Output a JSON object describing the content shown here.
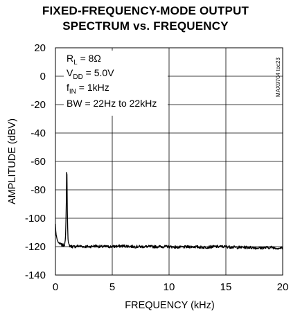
{
  "chart_data": {
    "type": "line",
    "title_line1": "FIXED-FREQUENCY-MODE OUTPUT",
    "title_line2": "SPECTRUM vs. FREQUENCY",
    "xlabel": "FREQUENCY (kHz)",
    "ylabel": "AMPLITUDE (dBV)",
    "xlim": [
      0,
      20
    ],
    "ylim": [
      -140,
      20
    ],
    "xticks": [
      0,
      5,
      10,
      15,
      20
    ],
    "yticks": [
      20,
      0,
      -20,
      -40,
      -60,
      -80,
      -100,
      -120,
      -140
    ],
    "grid": true,
    "annotations": {
      "rl": {
        "main": "R",
        "sub": "L",
        "rest": " = 8Ω"
      },
      "vdd": {
        "main": "V",
        "sub": "DD",
        "rest": " = 5.0V"
      },
      "fin": {
        "main": "f",
        "sub": "IN",
        "rest": " = 1kHz"
      },
      "bw": "BW = 22Hz to 22kHz"
    },
    "figure_id": "MAX9704 toc23",
    "series": [
      {
        "noise_floor": -120,
        "x": [
          0.0,
          0.02,
          0.05,
          0.1,
          0.15,
          0.2,
          0.25,
          0.3,
          0.4,
          0.5,
          0.6,
          0.7,
          0.8,
          0.85,
          0.9,
          0.95,
          0.98,
          1.0,
          1.02,
          1.05,
          1.1,
          1.15,
          1.2,
          1.3,
          1.5,
          1.75,
          2.0,
          2.5,
          3.0,
          3.5,
          4.0,
          4.5,
          5.0,
          6.0,
          7.0,
          8.0,
          9.0,
          10.0,
          11.0,
          12.0,
          13.0,
          14.0,
          15.0,
          16.0,
          17.0,
          18.0,
          19.0,
          19.5,
          20.0
        ],
        "y": [
          -104,
          -108,
          -111,
          -113,
          -115,
          -116,
          -117,
          -117.5,
          -118,
          -118.5,
          -119,
          -119,
          -118.5,
          -117,
          -111,
          -92,
          -70,
          -60,
          -72,
          -98,
          -114,
          -118,
          -119,
          -119.5,
          -120,
          -120,
          -119.5,
          -120,
          -120,
          -119.5,
          -120,
          -120,
          -120,
          -119.5,
          -120,
          -120,
          -120,
          -120,
          -120.5,
          -120,
          -120.5,
          -120,
          -120,
          -120.5,
          -120.5,
          -121,
          -120.5,
          -121,
          -121
        ]
      }
    ]
  }
}
